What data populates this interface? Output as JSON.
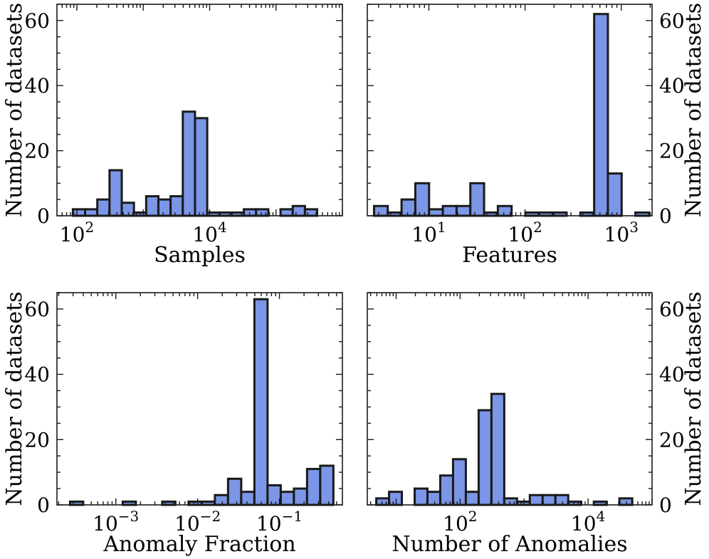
{
  "chart_data": [
    {
      "type": "bar",
      "title": "",
      "xlabel": "Samples",
      "ylabel": "Number of datasets",
      "xscale": "log",
      "ylabel_side": "left",
      "ylim": [
        0,
        65
      ],
      "yticks": [
        0,
        20,
        40,
        60
      ],
      "xticks": [
        {
          "base": "10",
          "exp": "2",
          "value": 2
        },
        {
          "base": "10",
          "exp": "4",
          "value": 4
        }
      ],
      "xrange_log10": [
        1.7,
        6.0
      ],
      "bins_log10_start": 1.94,
      "bins_log10_width": 0.184,
      "values": [
        2,
        2,
        5,
        14,
        4,
        1,
        6,
        5,
        6,
        32,
        30,
        1,
        1,
        1,
        2,
        2,
        0,
        2,
        3,
        2
      ]
    },
    {
      "type": "bar",
      "title": "",
      "xlabel": "Features",
      "ylabel": "Number of datasets",
      "xscale": "log",
      "ylabel_side": "right",
      "ylim": [
        0,
        65
      ],
      "yticks": [
        0,
        20,
        40,
        60
      ],
      "xticks": [
        {
          "base": "10",
          "exp": "1",
          "value": 1
        },
        {
          "base": "10",
          "exp": "2",
          "value": 2
        },
        {
          "base": "10",
          "exp": "3",
          "value": 3
        }
      ],
      "xrange_log10": [
        0.36,
        3.32
      ],
      "bins_log10_start": 0.43,
      "bins_log10_width": 0.143,
      "values": [
        3,
        1,
        5,
        10,
        2,
        3,
        3,
        10,
        1,
        3,
        0,
        1,
        1,
        1,
        0,
        1,
        62,
        13,
        0,
        1
      ]
    },
    {
      "type": "bar",
      "title": "",
      "xlabel": "Anomaly Fraction",
      "ylabel": "Number of datasets",
      "xscale": "log",
      "ylabel_side": "left",
      "ylim": [
        0,
        65
      ],
      "yticks": [
        0,
        20,
        40,
        60
      ],
      "xticks": [
        {
          "base": "10",
          "exp": "−3",
          "value": -3
        },
        {
          "base": "10",
          "exp": "−2",
          "value": -2
        },
        {
          "base": "10",
          "exp": "−1",
          "value": -1
        }
      ],
      "xrange_log10": [
        -3.72,
        -0.23
      ],
      "bins_log10_start": -3.56,
      "bins_log10_width": 0.161,
      "values": [
        1,
        0,
        0,
        0,
        1,
        0,
        0,
        1,
        0,
        1,
        1,
        3,
        8,
        4,
        63,
        6,
        4,
        5,
        11,
        12
      ]
    },
    {
      "type": "bar",
      "title": "",
      "xlabel": "Number of Anomalies",
      "ylabel": "Number of datasets",
      "xscale": "log",
      "ylabel_side": "right",
      "ylim": [
        0,
        65
      ],
      "yticks": [
        0,
        20,
        40,
        60
      ],
      "xticks": [
        {
          "base": "10",
          "exp": "2",
          "value": 2
        },
        {
          "base": "10",
          "exp": "4",
          "value": 4
        }
      ],
      "xrange_log10": [
        0.55,
        5.0
      ],
      "bins_log10_start": 0.69,
      "bins_log10_width": 0.2,
      "values": [
        2,
        4,
        0,
        5,
        4,
        9,
        14,
        4,
        29,
        34,
        2,
        1,
        3,
        3,
        3,
        1,
        0,
        1,
        0,
        2
      ]
    }
  ]
}
